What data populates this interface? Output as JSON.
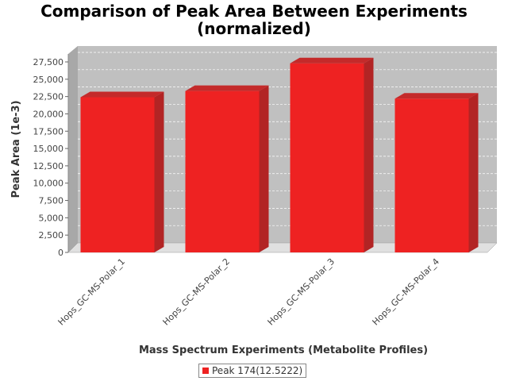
{
  "chart_data": {
    "type": "bar",
    "title_line1": "Comparison of Peak Area Between Experiments",
    "title_line2": "(normalized)",
    "xlabel": "Mass Spectrum Experiments (Metabolite Profiles)",
    "ylabel": "Peak Area (1e-3)",
    "categories": [
      "Hops_GC-MS-Polar_1",
      "Hops_GC-MS-Polar_2",
      "Hops_GC-MS-Polar_3",
      "Hops_GC-MS-Polar_4"
    ],
    "series": [
      {
        "name": "Peak 174(12.5222)",
        "values": [
          22400,
          23300,
          27300,
          22200
        ]
      }
    ],
    "ylim": [
      0,
      27500
    ],
    "yticks": [
      "0",
      "2,500",
      "5,000",
      "7,500",
      "10,000",
      "12,500",
      "15,000",
      "17,500",
      "20,000",
      "22,500",
      "25,000",
      "27,500"
    ],
    "grid": true,
    "legend_position": "bottom",
    "colors": {
      "bar": "#ee2222",
      "bar_top": "#c42a2a",
      "bar_side": "#b22424",
      "plot_bg": "#c0c0c0",
      "floor": "#e0e0e0"
    }
  }
}
